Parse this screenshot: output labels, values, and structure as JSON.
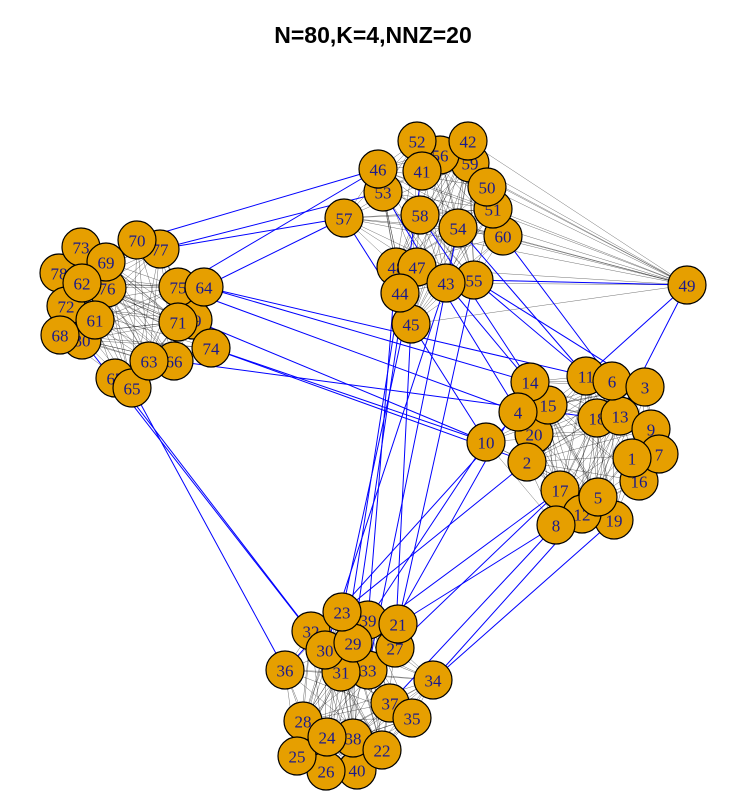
{
  "title": "N=80,K=4,NNZ=20",
  "colors": {
    "node_fill": "#E69F00",
    "node_stroke": "#000000",
    "label": "#1a1a8c",
    "between_edge": "#0000ff",
    "within_edge": "#000000"
  },
  "nodes": [
    {
      "id": "1"
    },
    {
      "id": "2"
    },
    {
      "id": "3"
    },
    {
      "id": "4"
    },
    {
      "id": "5"
    },
    {
      "id": "6"
    },
    {
      "id": "7"
    },
    {
      "id": "8"
    },
    {
      "id": "9"
    },
    {
      "id": "10"
    },
    {
      "id": "11"
    },
    {
      "id": "12"
    },
    {
      "id": "13"
    },
    {
      "id": "14"
    },
    {
      "id": "15"
    },
    {
      "id": "16"
    },
    {
      "id": "17"
    },
    {
      "id": "18"
    },
    {
      "id": "19"
    },
    {
      "id": "20"
    },
    {
      "id": "21"
    },
    {
      "id": "22"
    },
    {
      "id": "23"
    },
    {
      "id": "24"
    },
    {
      "id": "25"
    },
    {
      "id": "26"
    },
    {
      "id": "27"
    },
    {
      "id": "28"
    },
    {
      "id": "29"
    },
    {
      "id": "30"
    },
    {
      "id": "31"
    },
    {
      "id": "32"
    },
    {
      "id": "33"
    },
    {
      "id": "34"
    },
    {
      "id": "35"
    },
    {
      "id": "36"
    },
    {
      "id": "37"
    },
    {
      "id": "38"
    },
    {
      "id": "39"
    },
    {
      "id": "40"
    },
    {
      "id": "41"
    },
    {
      "id": "42"
    },
    {
      "id": "43"
    },
    {
      "id": "44"
    },
    {
      "id": "45"
    },
    {
      "id": "46"
    },
    {
      "id": "47"
    },
    {
      "id": "48"
    },
    {
      "id": "49"
    },
    {
      "id": "50"
    },
    {
      "id": "51"
    },
    {
      "id": "52"
    },
    {
      "id": "53"
    },
    {
      "id": "54"
    },
    {
      "id": "55"
    },
    {
      "id": "56"
    },
    {
      "id": "57"
    },
    {
      "id": "58"
    },
    {
      "id": "59"
    },
    {
      "id": "60"
    },
    {
      "id": "61"
    },
    {
      "id": "62"
    },
    {
      "id": "63"
    },
    {
      "id": "64"
    },
    {
      "id": "65"
    },
    {
      "id": "66"
    },
    {
      "id": "67"
    },
    {
      "id": "68"
    },
    {
      "id": "69"
    },
    {
      "id": "70"
    },
    {
      "id": "71"
    },
    {
      "id": "72"
    },
    {
      "id": "73"
    },
    {
      "id": "74"
    },
    {
      "id": "75"
    },
    {
      "id": "76"
    },
    {
      "id": "77"
    },
    {
      "id": "78"
    },
    {
      "id": "79"
    },
    {
      "id": "80"
    }
  ],
  "between_edges": [
    [
      "77",
      "57"
    ],
    [
      "70",
      "46"
    ],
    [
      "77",
      "53"
    ],
    [
      "64",
      "57"
    ],
    [
      "75",
      "46"
    ],
    [
      "64",
      "14"
    ],
    [
      "79",
      "10"
    ],
    [
      "74",
      "10"
    ],
    [
      "66",
      "18"
    ],
    [
      "75",
      "4"
    ],
    [
      "64",
      "11"
    ],
    [
      "74",
      "2"
    ],
    [
      "65",
      "36"
    ],
    [
      "67",
      "31"
    ],
    [
      "80",
      "31"
    ],
    [
      "55",
      "49"
    ],
    [
      "49",
      "11"
    ],
    [
      "49",
      "13"
    ],
    [
      "55",
      "3"
    ],
    [
      "43",
      "15"
    ],
    [
      "54",
      "11"
    ],
    [
      "60",
      "6"
    ],
    [
      "55",
      "9"
    ],
    [
      "58",
      "14"
    ],
    [
      "57",
      "10"
    ],
    [
      "53",
      "4"
    ],
    [
      "47",
      "23"
    ],
    [
      "44",
      "31"
    ],
    [
      "45",
      "27"
    ],
    [
      "48",
      "39"
    ],
    [
      "43",
      "30"
    ],
    [
      "55",
      "21"
    ],
    [
      "54",
      "33"
    ],
    [
      "41",
      "29"
    ],
    [
      "10",
      "39"
    ],
    [
      "8",
      "21"
    ],
    [
      "12",
      "34"
    ],
    [
      "19",
      "34"
    ],
    [
      "17",
      "27"
    ],
    [
      "2",
      "23"
    ],
    [
      "14",
      "33"
    ],
    [
      "4",
      "36"
    ],
    [
      "8",
      "37"
    ],
    [
      "17",
      "29"
    ]
  ]
}
